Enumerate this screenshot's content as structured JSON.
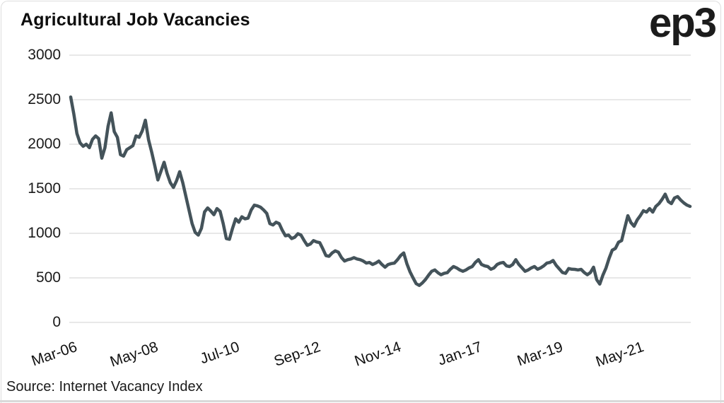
{
  "header": {
    "title": "Agricultural Job Vacancies",
    "logo_text": "ep3"
  },
  "source": {
    "label": "Source: Internet Vacancy Index"
  },
  "colors": {
    "line": "#44535A",
    "grid": "#d9d9d9",
    "text": "#1a1a1a",
    "frame_border": "#dedede"
  },
  "chart_data": {
    "type": "line",
    "title": "Agricultural Job Vacancies",
    "xlabel": "",
    "ylabel": "",
    "frequency": "monthly",
    "x_start": "Mar-2006",
    "x_end": "Oct-2022",
    "grid": "horizontal",
    "legend": "none",
    "ylim": [
      0,
      3000
    ],
    "yticks": [
      0,
      500,
      1000,
      1500,
      2000,
      2500,
      3000
    ],
    "x_tick_labels": [
      "Mar-06",
      "May-08",
      "Jul-10",
      "Sep-12",
      "Nov-14",
      "Jan-17",
      "Mar-19",
      "May-21"
    ],
    "x_tick_month_indices": [
      0,
      26,
      52,
      78,
      104,
      130,
      156,
      182
    ],
    "series_name": "Agricultural job vacancies (Internet Vacancy Index)",
    "values": [
      2530,
      2340,
      2120,
      2016,
      1977,
      2000,
      1961,
      2055,
      2094,
      2063,
      1844,
      1960,
      2200,
      2352,
      2141,
      2078,
      1883,
      1867,
      1938,
      1961,
      1984,
      2094,
      2078,
      2150,
      2270,
      2050,
      1913,
      1760,
      1599,
      1698,
      1798,
      1668,
      1568,
      1515,
      1590,
      1691,
      1568,
      1415,
      1262,
      1109,
      1010,
      980,
      1056,
      1240,
      1285,
      1250,
      1209,
      1278,
      1247,
      1109,
      941,
      933,
      1056,
      1163,
      1125,
      1186,
      1163,
      1171,
      1262,
      1316,
      1308,
      1293,
      1262,
      1224,
      1109,
      1094,
      1125,
      1109,
      1033,
      972,
      980,
      941,
      956,
      995,
      980,
      918,
      865,
      880,
      918,
      903,
      895,
      826,
      750,
      742,
      780,
      803,
      788,
      727,
      689,
      704,
      712,
      727,
      712,
      704,
      689,
      666,
      673,
      650,
      666,
      689,
      650,
      620,
      650,
      660,
      666,
      704,
      750,
      780,
      660,
      570,
      500,
      435,
      415,
      444,
      482,
      530,
      574,
      589,
      558,
      535,
      551,
      558,
      597,
      627,
      612,
      589,
      574,
      589,
      612,
      627,
      673,
      704,
      650,
      635,
      627,
      597,
      612,
      650,
      666,
      673,
      635,
      627,
      650,
      704,
      650,
      612,
      574,
      589,
      612,
      627,
      597,
      612,
      635,
      666,
      673,
      695,
      640,
      600,
      560,
      551,
      605,
      597,
      595,
      589,
      595,
      560,
      535,
      560,
      620,
      480,
      430,
      530,
      610,
      720,
      810,
      830,
      900,
      918,
      1060,
      1198,
      1120,
      1079,
      1150,
      1198,
      1254,
      1238,
      1278,
      1238,
      1302,
      1333,
      1381,
      1440,
      1357,
      1333,
      1397,
      1413,
      1373,
      1341,
      1317,
      1302
    ]
  }
}
